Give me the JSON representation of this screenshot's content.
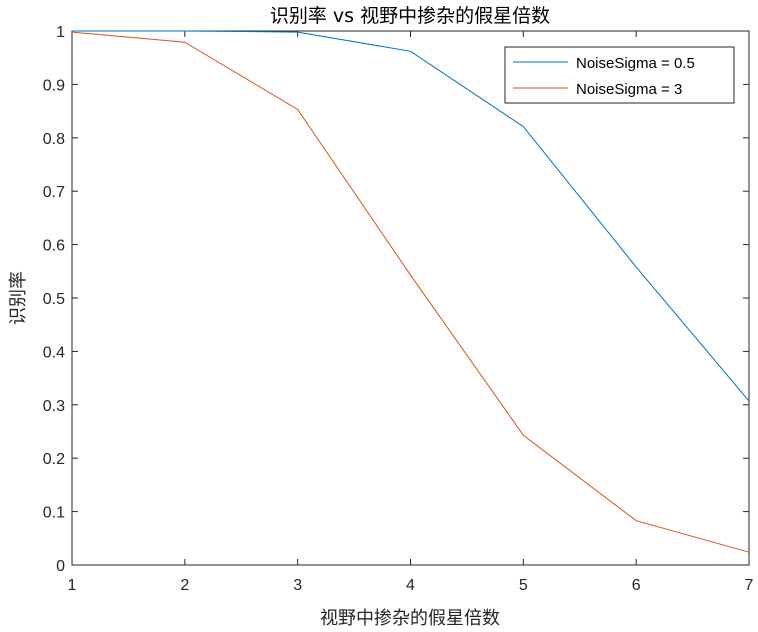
{
  "chart_data": {
    "type": "line",
    "title": "识别率 vs 视野中掺杂的假星倍数",
    "xlabel": "视野中掺杂的假星倍数",
    "ylabel": "识别率",
    "xlim": [
      1,
      7
    ],
    "ylim": [
      0,
      1
    ],
    "x_ticks": [
      "1",
      "2",
      "3",
      "4",
      "5",
      "6",
      "7"
    ],
    "y_ticks": [
      "0",
      "0.1",
      "0.2",
      "0.3",
      "0.4",
      "0.5",
      "0.6",
      "0.7",
      "0.8",
      "0.9",
      "1"
    ],
    "grid": false,
    "legend_position": "top-right",
    "x": [
      1,
      2,
      3,
      4,
      5,
      6,
      7
    ],
    "series": [
      {
        "name": "NoiseSigma = 0.5",
        "color": "#0072BD",
        "values": [
          1.0,
          1.0,
          0.998,
          0.962,
          0.821,
          0.558,
          0.307
        ]
      },
      {
        "name": "NoiseSigma = 3",
        "color": "#D95319",
        "values": [
          0.998,
          0.979,
          0.853,
          0.543,
          0.243,
          0.083,
          0.024
        ]
      }
    ]
  }
}
